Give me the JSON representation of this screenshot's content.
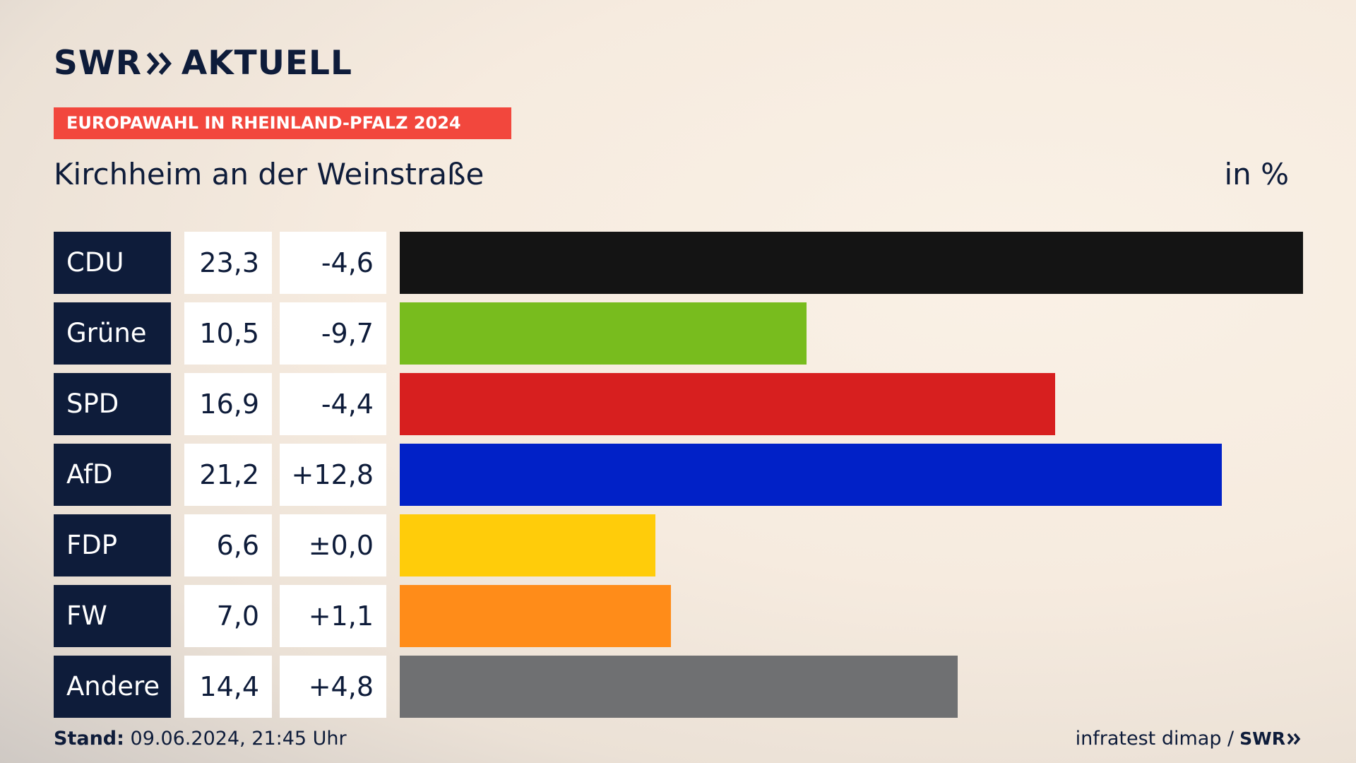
{
  "header": {
    "logo_swr": "SWR",
    "logo_aktuell": "AKTUELL",
    "kicker": "EUROPAWAHL IN RHEINLAND-PFALZ 2024",
    "title": "Kirchheim an der Weinstraße",
    "unit": "in %"
  },
  "footer": {
    "stand_label": "Stand:",
    "stand_value": "09.06.2024, 21:45 Uhr",
    "source": "infratest dimap /",
    "source_logo": "SWR"
  },
  "colors": {
    "navy": "#0e1c3a",
    "kicker_red": "#f2473d"
  },
  "chart_data": {
    "type": "bar",
    "orientation": "horizontal",
    "xlim": [
      0,
      23.3
    ],
    "categories": [
      "CDU",
      "Grüne",
      "SPD",
      "AfD",
      "FDP",
      "FW",
      "Andere"
    ],
    "values": [
      23.3,
      10.5,
      16.9,
      21.2,
      6.6,
      7.0,
      14.4
    ],
    "value_labels": [
      "23,3",
      "10,5",
      "16,9",
      "21,2",
      "6,6",
      "7,0",
      "14,4"
    ],
    "change_labels": [
      "-4,6",
      "-9,7",
      "-4,4",
      "+12,8",
      "±0,0",
      "+1,1",
      "+4,8"
    ],
    "bar_colors": [
      "#141414",
      "#78bc1e",
      "#d71f1f",
      "#0121c7",
      "#ffcc0a",
      "#ff8c19",
      "#6f7072"
    ]
  }
}
